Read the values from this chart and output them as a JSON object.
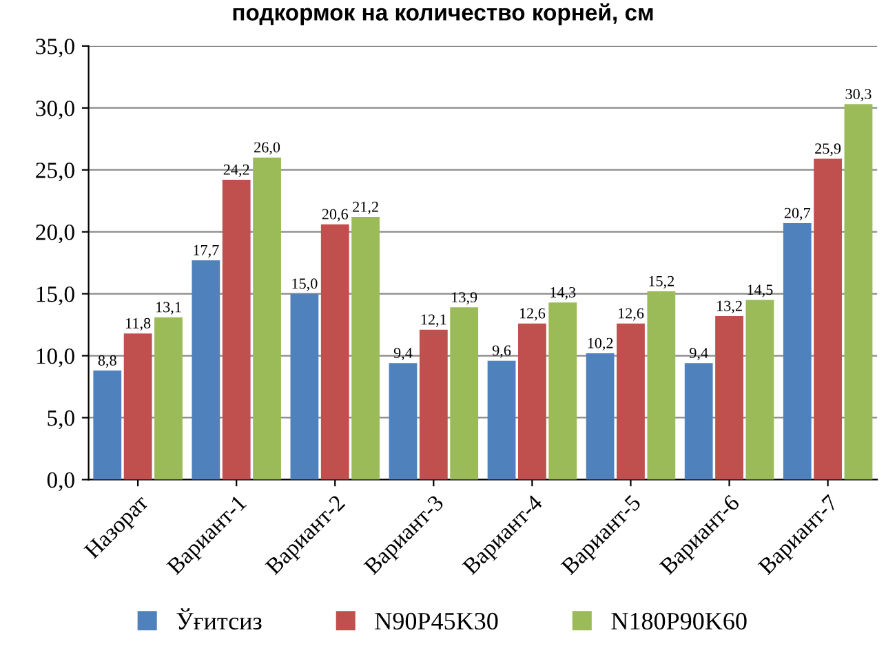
{
  "chart_data": {
    "type": "bar",
    "title": "подкормок на количество корней, см",
    "categories": [
      "Назорат",
      "Вариант-1",
      "Вариант-2",
      "Вариант-3",
      "Вариант-4",
      "Вариант-5",
      "Вариант-6",
      "Вариант-7"
    ],
    "series": [
      {
        "name": "Ўғитсиз",
        "color": "#4f81bd",
        "values": [
          8.8,
          17.7,
          15.0,
          9.4,
          9.6,
          10.2,
          9.4,
          20.7
        ],
        "value_labels": [
          "8,8",
          "17,7",
          "15,0",
          "9,4",
          "9,6",
          "10,2",
          "9,4",
          "20,7"
        ]
      },
      {
        "name": "N90P45K30",
        "color": "#c0504d",
        "values": [
          11.8,
          24.2,
          20.6,
          12.1,
          12.6,
          12.6,
          13.2,
          25.9
        ],
        "value_labels": [
          "11,8",
          "24,2",
          "20,6",
          "12,1",
          "12,6",
          "12,6",
          "13,2",
          "25,9"
        ]
      },
      {
        "name": "N180P90K60",
        "color": "#9bbb59",
        "values": [
          13.1,
          26.0,
          21.2,
          13.9,
          14.3,
          15.2,
          14.5,
          30.3
        ],
        "value_labels": [
          "13,1",
          "26,0",
          "21,2",
          "13,9",
          "14,3",
          "15,2",
          "14,5",
          "30,3"
        ]
      }
    ],
    "ylim": [
      0,
      35
    ],
    "yticks": [
      {
        "value": 0,
        "label": "0,0"
      },
      {
        "value": 5,
        "label": "5,0"
      },
      {
        "value": 10,
        "label": "10,0"
      },
      {
        "value": 15,
        "label": "15,0"
      },
      {
        "value": 20,
        "label": "20,0"
      },
      {
        "value": 25,
        "label": "25,0"
      },
      {
        "value": 30,
        "label": "30,0"
      },
      {
        "value": 35,
        "label": "35,0"
      }
    ],
    "grid": "y",
    "legend": "bottom"
  }
}
